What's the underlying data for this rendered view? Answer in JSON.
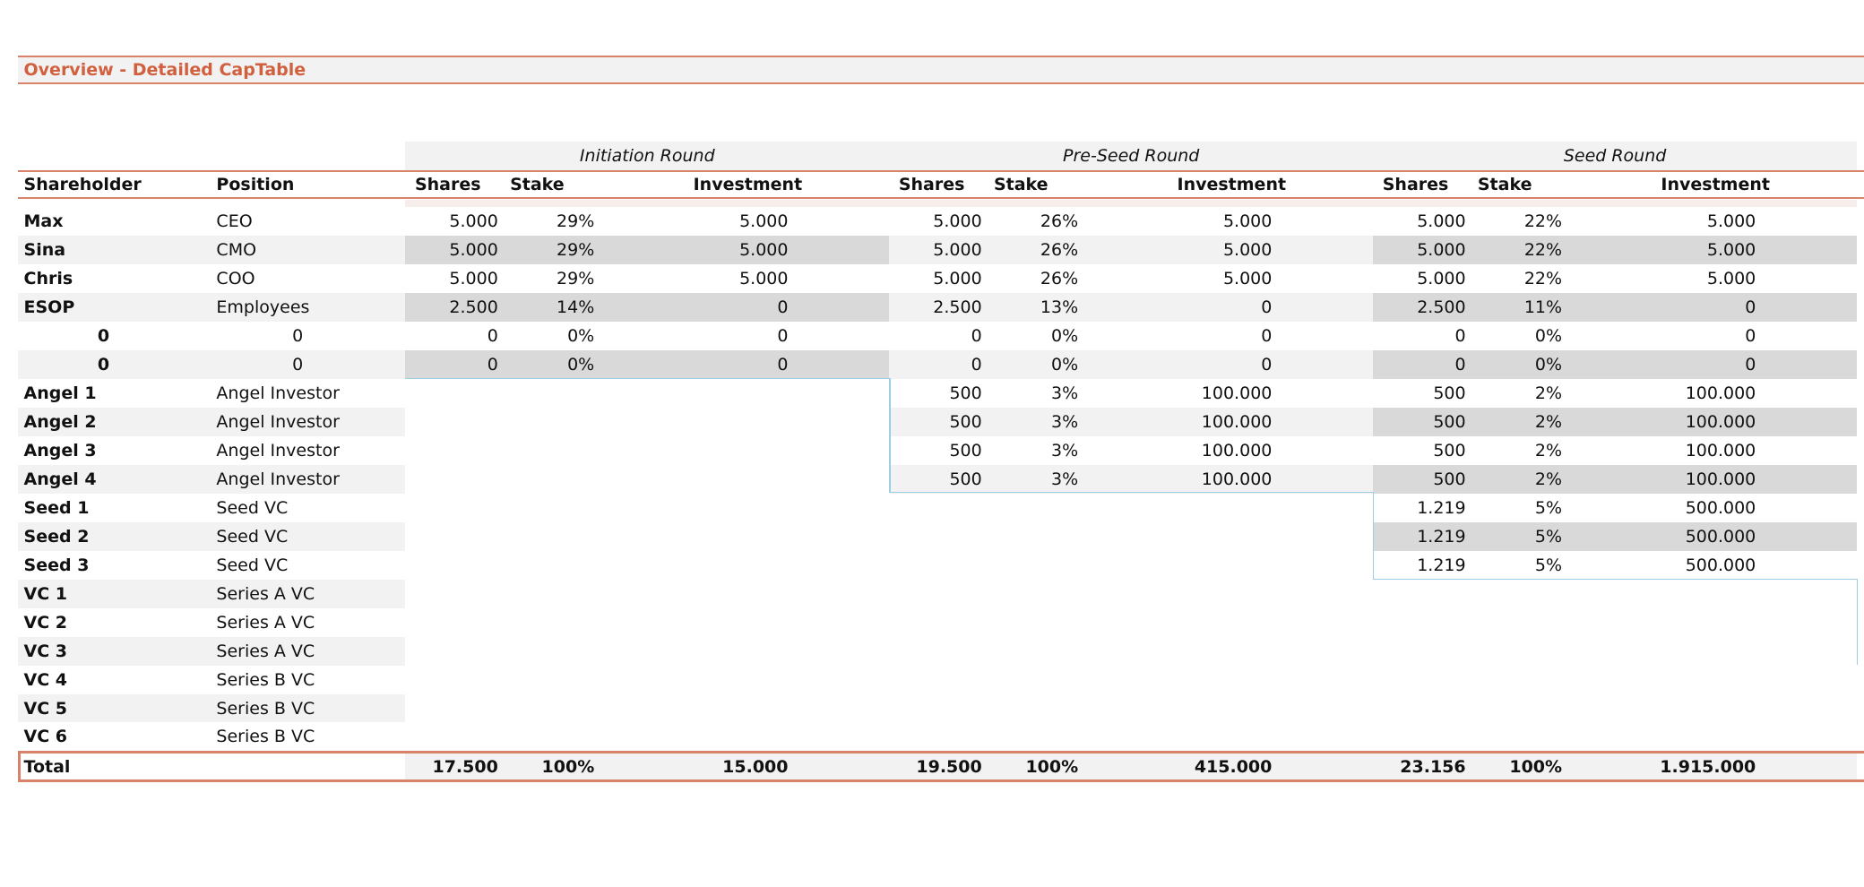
{
  "title": "Overview - Detailed CapTable",
  "columns": [
    "Shareholder",
    "Position"
  ],
  "rounds": [
    {
      "name": "Initiation Round",
      "headers": [
        "Shares",
        "Stake",
        "Investment"
      ]
    },
    {
      "name": "Pre-Seed Round",
      "headers": [
        "Shares",
        "Stake",
        "Investment"
      ]
    },
    {
      "name": "Seed Round",
      "headers": [
        "Shares",
        "Stake",
        "Investment"
      ]
    }
  ],
  "rows": [
    {
      "shareholder": "Max",
      "position": "CEO",
      "cells": [
        [
          "5.000",
          "29%",
          "5.000"
        ],
        [
          "5.000",
          "26%",
          "5.000"
        ],
        [
          "5.000",
          "22%",
          "5.000"
        ]
      ]
    },
    {
      "shareholder": "Sina",
      "position": "CMO",
      "cells": [
        [
          "5.000",
          "29%",
          "5.000"
        ],
        [
          "5.000",
          "26%",
          "5.000"
        ],
        [
          "5.000",
          "22%",
          "5.000"
        ]
      ]
    },
    {
      "shareholder": "Chris",
      "position": "COO",
      "cells": [
        [
          "5.000",
          "29%",
          "5.000"
        ],
        [
          "5.000",
          "26%",
          "5.000"
        ],
        [
          "5.000",
          "22%",
          "5.000"
        ]
      ]
    },
    {
      "shareholder": "ESOP",
      "position": "Employees",
      "cells": [
        [
          "2.500",
          "14%",
          "0"
        ],
        [
          "2.500",
          "13%",
          "0"
        ],
        [
          "2.500",
          "11%",
          "0"
        ]
      ]
    },
    {
      "shareholder": "0",
      "position": "0",
      "cells": [
        [
          "0",
          "0%",
          "0"
        ],
        [
          "0",
          "0%",
          "0"
        ],
        [
          "0",
          "0%",
          "0"
        ]
      ]
    },
    {
      "shareholder": "0",
      "position": "0",
      "cells": [
        [
          "0",
          "0%",
          "0"
        ],
        [
          "0",
          "0%",
          "0"
        ],
        [
          "0",
          "0%",
          "0"
        ]
      ]
    },
    {
      "shareholder": "Angel 1",
      "position": "Angel Investor",
      "cells": [
        null,
        [
          "500",
          "3%",
          "100.000"
        ],
        [
          "500",
          "2%",
          "100.000"
        ]
      ]
    },
    {
      "shareholder": "Angel 2",
      "position": "Angel Investor",
      "cells": [
        null,
        [
          "500",
          "3%",
          "100.000"
        ],
        [
          "500",
          "2%",
          "100.000"
        ]
      ]
    },
    {
      "shareholder": "Angel 3",
      "position": "Angel Investor",
      "cells": [
        null,
        [
          "500",
          "3%",
          "100.000"
        ],
        [
          "500",
          "2%",
          "100.000"
        ]
      ]
    },
    {
      "shareholder": "Angel 4",
      "position": "Angel Investor",
      "cells": [
        null,
        [
          "500",
          "3%",
          "100.000"
        ],
        [
          "500",
          "2%",
          "100.000"
        ]
      ]
    },
    {
      "shareholder": "Seed 1",
      "position": "Seed VC",
      "cells": [
        null,
        null,
        [
          "1.219",
          "5%",
          "500.000"
        ]
      ]
    },
    {
      "shareholder": "Seed 2",
      "position": "Seed VC",
      "cells": [
        null,
        null,
        [
          "1.219",
          "5%",
          "500.000"
        ]
      ]
    },
    {
      "shareholder": "Seed 3",
      "position": "Seed VC",
      "cells": [
        null,
        null,
        [
          "1.219",
          "5%",
          "500.000"
        ]
      ]
    },
    {
      "shareholder": "VC 1",
      "position": "Series A VC",
      "cells": [
        null,
        null,
        null
      ]
    },
    {
      "shareholder": "VC 2",
      "position": "Series A VC",
      "cells": [
        null,
        null,
        null
      ]
    },
    {
      "shareholder": "VC 3",
      "position": "Series A VC",
      "cells": [
        null,
        null,
        null
      ]
    },
    {
      "shareholder": "VC 4",
      "position": "Series B VC",
      "cells": [
        null,
        null,
        null
      ]
    },
    {
      "shareholder": "VC 5",
      "position": "Series B VC",
      "cells": [
        null,
        null,
        null
      ]
    },
    {
      "shareholder": "VC 6",
      "position": "Series B VC",
      "cells": [
        null,
        null,
        null
      ]
    }
  ],
  "total": {
    "label": "Total",
    "cells": [
      [
        "17.500",
        "100%",
        "15.000"
      ],
      [
        "19.500",
        "100%",
        "415.000"
      ],
      [
        "23.156",
        "100%",
        "1.915.000"
      ]
    ]
  }
}
